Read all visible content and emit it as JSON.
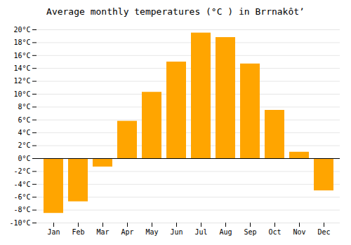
{
  "chart_data": {
    "type": "bar",
    "title": "Average monthly temperatures (°C ) in Brrnakôtʼ",
    "categories": [
      "Jan",
      "Feb",
      "Mar",
      "Apr",
      "May",
      "Jun",
      "Jul",
      "Aug",
      "Sep",
      "Oct",
      "Nov",
      "Dec"
    ],
    "values": [
      -8.5,
      -6.7,
      -1.3,
      5.8,
      10.3,
      15.0,
      19.5,
      18.8,
      14.7,
      7.5,
      1.0,
      -5.0
    ],
    "color": "#FFA500",
    "ylim": [
      -10,
      20
    ],
    "yticks": [
      {
        "value": -10,
        "label": "-10°C"
      },
      {
        "value": -8,
        "label": "-8°C"
      },
      {
        "value": -6,
        "label": "-6°C"
      },
      {
        "value": -4,
        "label": "-4°C"
      },
      {
        "value": -2,
        "label": "-2°C"
      },
      {
        "value": 0,
        "label": "0°C"
      },
      {
        "value": 2,
        "label": "2°C"
      },
      {
        "value": 4,
        "label": "4°C"
      },
      {
        "value": 6,
        "label": "6°C"
      },
      {
        "value": 8,
        "label": "8°C"
      },
      {
        "value": 10,
        "label": "10°C"
      },
      {
        "value": 12,
        "label": "12°C"
      },
      {
        "value": 14,
        "label": "14°C"
      },
      {
        "value": 16,
        "label": "16°C"
      },
      {
        "value": 18,
        "label": "18°C"
      },
      {
        "value": 20,
        "label": "20°C"
      }
    ],
    "grid": true
  }
}
